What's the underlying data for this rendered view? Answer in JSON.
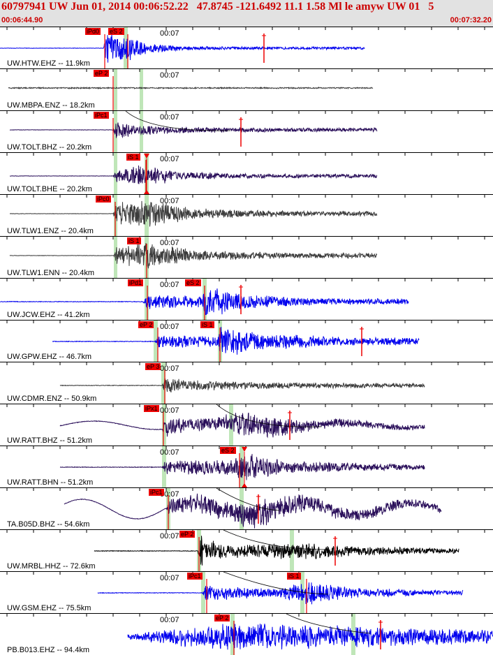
{
  "header": {
    "title": "60797941 UW Jun 01, 2014 00:06:52.22   47.8745 -121.6492 11.1 1.58 Ml le amyw UW 01   5",
    "time_start": "00:06:44.90",
    "time_end": "00:07:32.20"
  },
  "colors": {
    "header_bg": "#e2e2e2",
    "header_text": "#cc0000",
    "pick": "#ee0000",
    "window": "#bfe6b8",
    "blue_trace": "#0000ee",
    "gray_trace": "#3c3c3c",
    "purple_trace": "#2a0f5a",
    "black_trace": "#000000"
  },
  "traces": [
    {
      "label": "UW.HTW.EHZ -- 11.9km",
      "time_mark": "00:07",
      "picks": [
        "iPd0",
        "eS 2"
      ],
      "color": "blue"
    },
    {
      "label": "UW.MBPA.ENZ -- 18.2km",
      "time_mark": "00:07",
      "picks": [
        "eP 2"
      ],
      "color": "gray"
    },
    {
      "label": "UW.TOLT.BHZ -- 20.2km",
      "time_mark": "00:07",
      "picks": [
        "iPc1"
      ],
      "color": "purple"
    },
    {
      "label": "UW.TOLT.BHE -- 20.2km",
      "time_mark": "00:07",
      "picks": [
        "iS 1"
      ],
      "color": "purple"
    },
    {
      "label": "UW.TLW1.ENZ -- 20.4km",
      "time_mark": "00:07",
      "picks": [
        "iPc0"
      ],
      "color": "gray"
    },
    {
      "label": "UW.TLW1.ENN -- 20.4km",
      "time_mark": "00:07",
      "picks": [
        "iS 1"
      ],
      "color": "gray"
    },
    {
      "label": "UW.JCW.EHZ -- 41.2km",
      "time_mark": "00:07",
      "picks": [
        "iPd1",
        "eS 2"
      ],
      "color": "blue"
    },
    {
      "label": "UW.GPW.EHZ -- 46.7km",
      "time_mark": "00:07",
      "picks": [
        "eP 2",
        "iS 1"
      ],
      "color": "blue"
    },
    {
      "label": "UW.CDMR.ENZ -- 50.9km",
      "time_mark": "00:07",
      "picks": [
        "eP 3"
      ],
      "color": "gray"
    },
    {
      "label": "UW.RATT.BHZ -- 51.2km",
      "time_mark": "00:07",
      "picks": [
        "iPx1"
      ],
      "color": "purple"
    },
    {
      "label": "UW.RATT.BHN -- 51.2km",
      "time_mark": "00:07",
      "picks": [
        "eS 2"
      ],
      "color": "purple"
    },
    {
      "label": "TA.B05D.BHZ -- 54.6km",
      "time_mark": "00:07",
      "picks": [
        "iPc1"
      ],
      "color": "purple"
    },
    {
      "label": "UW.MRBL.HHZ -- 72.6km",
      "time_mark": "00:07",
      "picks": [
        "eP 2"
      ],
      "color": "black"
    },
    {
      "label": "UW.GSM.EHZ -- 75.5km",
      "time_mark": "00:07",
      "picks": [
        "iPc1",
        "iS 1"
      ],
      "color": "blue"
    },
    {
      "label": "PB.B013.EHZ -- 94.4km",
      "time_mark": "00:07",
      "picks": [
        "eP 2"
      ],
      "color": "blue"
    }
  ]
}
